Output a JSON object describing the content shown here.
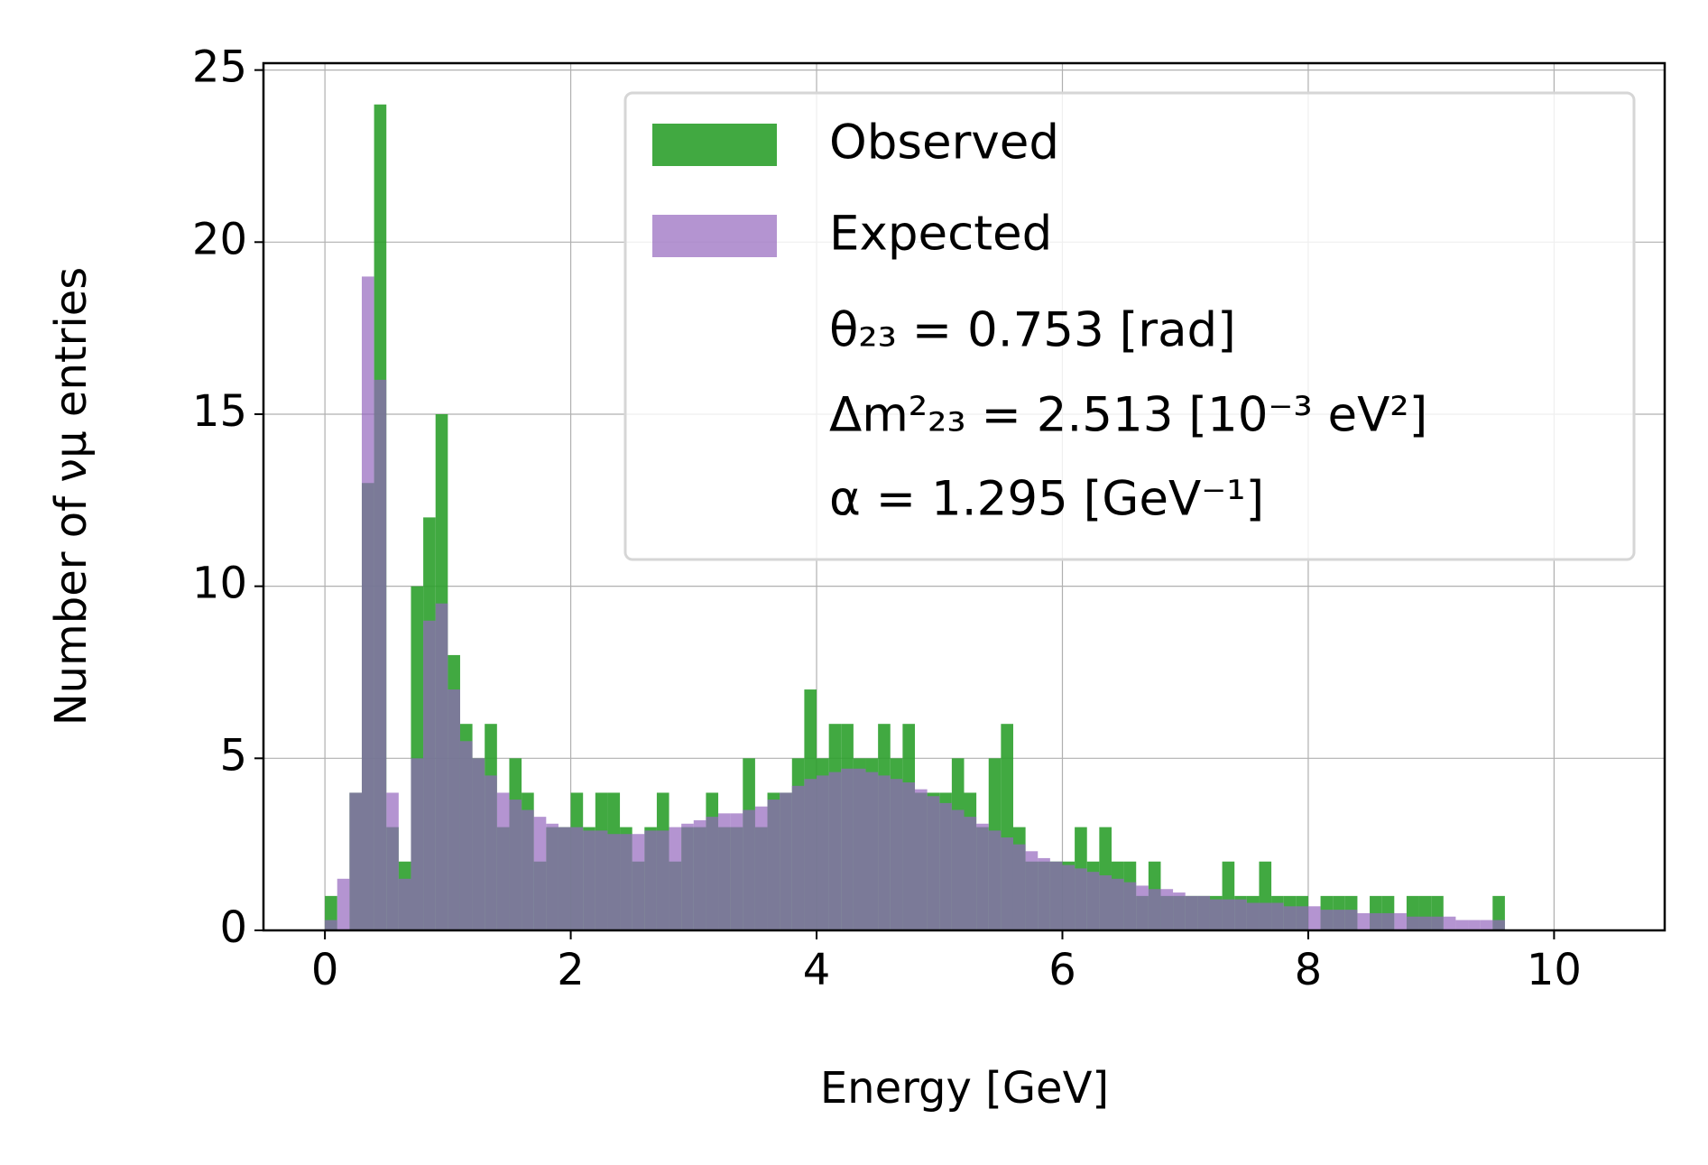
{
  "chart_data": {
    "type": "histogram",
    "xlabel": "Energy [GeV]",
    "ylabel": "Number of νμ entries",
    "bins": [
      0,
      0.1,
      0.2,
      0.3,
      0.4,
      0.5,
      0.6,
      0.7,
      0.8,
      0.9,
      1,
      1.1,
      1.2,
      1.3,
      1.4,
      1.5,
      1.6,
      1.7,
      1.8,
      1.9,
      2,
      2.1,
      2.2,
      2.3,
      2.4,
      2.5,
      2.6,
      2.7,
      2.8,
      2.9,
      3,
      3.1,
      3.2,
      3.3,
      3.4,
      3.5,
      3.6,
      3.7,
      3.8,
      3.9,
      4,
      4.1,
      4.2,
      4.3,
      4.4,
      4.5,
      4.6,
      4.7,
      4.8,
      4.9,
      5,
      5.1,
      5.2,
      5.3,
      5.4,
      5.5,
      5.6,
      5.7,
      5.8,
      5.9,
      6,
      6.1,
      6.2,
      6.3,
      6.4,
      6.5,
      6.6,
      6.7,
      6.8,
      6.9,
      7,
      7.1,
      7.2,
      7.3,
      7.4,
      7.5,
      7.6,
      7.7,
      7.8,
      7.9,
      8,
      8.1,
      8.2,
      8.3,
      8.4,
      8.5,
      8.6,
      8.7,
      8.8,
      8.9,
      9,
      9.1,
      9.2,
      9.3,
      9.4,
      9.5,
      9.6
    ],
    "series": [
      {
        "name": "Observed",
        "color": "#2ca02c",
        "values": [
          1,
          0,
          4,
          13,
          24,
          3,
          2,
          10,
          12,
          15,
          8,
          6,
          5,
          6,
          3,
          5,
          4,
          2,
          3,
          3,
          4,
          3,
          4,
          4,
          3,
          2,
          3,
          4,
          2,
          3,
          3,
          4,
          3,
          3,
          5,
          3,
          4,
          4,
          5,
          7,
          5,
          6,
          6,
          5,
          5,
          6,
          5,
          6,
          4,
          4,
          4,
          5,
          4,
          3,
          5,
          6,
          3,
          2,
          2,
          2,
          2,
          3,
          2,
          3,
          2,
          2,
          1,
          2,
          1,
          1,
          1,
          1,
          1,
          2,
          1,
          1,
          2,
          1,
          1,
          1,
          0,
          1,
          1,
          1,
          0,
          1,
          1,
          0,
          1,
          1,
          1,
          0,
          0,
          0,
          0,
          1
        ]
      },
      {
        "name": "Expected",
        "color": "#9467bd",
        "values": [
          0.3,
          1.5,
          4,
          19,
          16,
          4,
          1.5,
          5,
          9,
          9.5,
          7,
          5.5,
          5,
          4.5,
          4,
          3.8,
          3.5,
          3.3,
          3.1,
          3.0,
          3.0,
          2.9,
          2.9,
          2.8,
          2.8,
          2.8,
          2.9,
          2.9,
          3.0,
          3.1,
          3.2,
          3.3,
          3.4,
          3.4,
          3.5,
          3.6,
          3.8,
          4.0,
          4.2,
          4.4,
          4.5,
          4.6,
          4.7,
          4.7,
          4.6,
          4.5,
          4.4,
          4.3,
          4.1,
          3.9,
          3.7,
          3.5,
          3.3,
          3.1,
          2.9,
          2.7,
          2.5,
          2.3,
          2.1,
          2.0,
          1.9,
          1.8,
          1.7,
          1.6,
          1.5,
          1.4,
          1.3,
          1.2,
          1.2,
          1.1,
          1.0,
          1.0,
          0.9,
          0.9,
          0.9,
          0.8,
          0.8,
          0.8,
          0.7,
          0.7,
          0.7,
          0.6,
          0.6,
          0.6,
          0.5,
          0.5,
          0.5,
          0.5,
          0.4,
          0.4,
          0.4,
          0.4,
          0.3,
          0.3,
          0.3,
          0.3
        ]
      }
    ],
    "legend_notes": [
      "θ₂₃ = 0.753 [rad]",
      "Δm²₂₃ = 2.513 [10⁻³ eV²]",
      "α = 1.295 [GeV⁻¹]"
    ],
    "legend_position": "upper right",
    "xlim": [
      -0.5,
      10.9
    ],
    "ylim": [
      0,
      25.2
    ],
    "xticks": [
      0,
      2,
      4,
      6,
      8,
      10
    ],
    "yticks": [
      0,
      5,
      10,
      15,
      20,
      25
    ],
    "grid": true
  }
}
